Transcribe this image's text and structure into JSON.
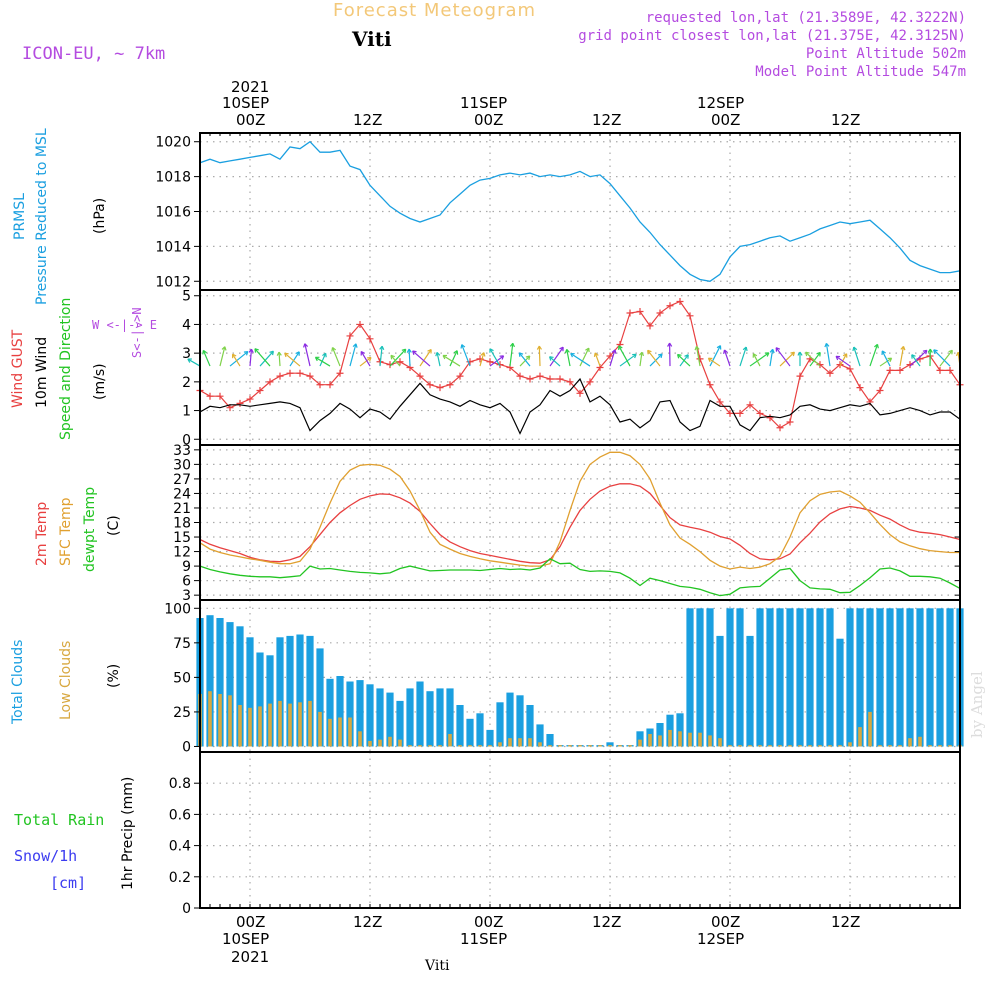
{
  "header": {
    "title": "Forecast Meteogram",
    "station": "Viti",
    "model": "ICON-EU, ~ 7km",
    "requested": "requested lon,lat (21.3589E, 42.3222N)",
    "gridpoint": "grid point closest lon,lat (21.375E, 42.3125N)",
    "point_altitude": "Point Altitude 502m",
    "model_altitude": "Model Point Altitude 547m"
  },
  "time_axis": {
    "year": "2021",
    "labels": [
      {
        "date": "10SEP",
        "hour": "00Z",
        "t": 0
      },
      {
        "date": "",
        "hour": "12Z",
        "t": 12
      },
      {
        "date": "11SEP",
        "hour": "00Z",
        "t": 24
      },
      {
        "date": "",
        "hour": "12Z",
        "t": 36
      },
      {
        "date": "12SEP",
        "hour": "00Z",
        "t": 48
      },
      {
        "date": "",
        "hour": "12Z",
        "t": 60
      }
    ],
    "range_hours": [
      -5,
      71
    ]
  },
  "footer": {
    "station": "Viti",
    "watermark": "by Angel"
  },
  "panel_labels": {
    "pressure": [
      "PRMSL",
      "Pressure Reduced to MSL",
      "(hPa)"
    ],
    "wind": [
      "Wind GUST",
      "10m Wind",
      "Speed and Direction",
      "(m/s)"
    ],
    "wind_compass": [
      "W <-|-> E",
      "S<-|->N"
    ],
    "temp": [
      "2m Temp",
      "SFC Temp",
      "dewpt Temp",
      "(C)"
    ],
    "clouds": [
      "Total Clouds",
      "Low Clouds",
      "(%)"
    ],
    "precip": [
      "1hr Precip (mm)",
      "Total  Rain",
      "Snow/1h",
      "[cm]"
    ]
  },
  "colors": {
    "pressure": "#1a9fe0",
    "gust": "#e84040",
    "wind": "#000000",
    "temp2m": "#e84040",
    "sfc": "#e0a030",
    "dewpt": "#22c422",
    "total_clouds": "#1a9fe0",
    "low_clouds": "#d8a840",
    "purple": "#b44be0",
    "rain": "#22c422",
    "snow": "#3b3bf0"
  },
  "chart_data": [
    {
      "type": "line",
      "title": "PRMSL Pressure Reduced to MSL",
      "ylabel": "(hPa)",
      "ylim": [
        1011.5,
        1020.5
      ],
      "yticks": [
        1012,
        1014,
        1016,
        1018,
        1020
      ],
      "x": [
        -5,
        -4,
        -3,
        -2,
        -1,
        0,
        1,
        2,
        3,
        4,
        5,
        6,
        7,
        8,
        9,
        10,
        11,
        12,
        13,
        14,
        15,
        16,
        17,
        18,
        19,
        20,
        21,
        22,
        23,
        24,
        25,
        26,
        27,
        28,
        29,
        30,
        31,
        32,
        33,
        34,
        35,
        36,
        37,
        38,
        39,
        40,
        41,
        42,
        43,
        44,
        45,
        46,
        47,
        48,
        49,
        50,
        51,
        52,
        53,
        54,
        55,
        56,
        57,
        58,
        59,
        60,
        61,
        62,
        63,
        64,
        65,
        66,
        67,
        68,
        69,
        70,
        71
      ],
      "y": [
        1018.8,
        1019.0,
        1018.8,
        1018.9,
        1019.0,
        1019.1,
        1019.2,
        1019.3,
        1019.0,
        1019.7,
        1019.6,
        1020.0,
        1019.4,
        1019.4,
        1019.5,
        1018.6,
        1018.4,
        1017.5,
        1016.9,
        1016.3,
        1015.9,
        1015.6,
        1015.4,
        1015.6,
        1015.8,
        1016.5,
        1017.0,
        1017.5,
        1017.8,
        1017.9,
        1018.1,
        1018.2,
        1018.1,
        1018.2,
        1018.0,
        1018.1,
        1018.0,
        1018.1,
        1018.3,
        1018.0,
        1018.1,
        1017.6,
        1016.9,
        1016.2,
        1015.4,
        1014.8,
        1014.1,
        1013.5,
        1012.9,
        1012.4,
        1012.1,
        1012.0,
        1012.4,
        1013.4,
        1014.0,
        1014.1,
        1014.3,
        1014.5,
        1014.6,
        1014.3,
        1014.5,
        1014.7,
        1015.0,
        1015.2,
        1015.4,
        1015.3,
        1015.4,
        1015.5,
        1015.0,
        1014.5,
        1013.9,
        1013.2,
        1012.9,
        1012.7,
        1012.5,
        1012.5,
        1012.6
      ]
    },
    {
      "type": "line",
      "title": "Wind GUST / 10m Wind Speed and Direction",
      "ylabel": "(m/s)",
      "ylim": [
        -0.2,
        5.2
      ],
      "yticks": [
        0,
        1,
        2,
        3,
        4,
        5
      ],
      "x": [
        -5,
        -4,
        -3,
        -2,
        -1,
        0,
        1,
        2,
        3,
        4,
        5,
        6,
        7,
        8,
        9,
        10,
        11,
        12,
        13,
        14,
        15,
        16,
        17,
        18,
        19,
        20,
        21,
        22,
        23,
        24,
        25,
        26,
        27,
        28,
        29,
        30,
        31,
        32,
        33,
        34,
        35,
        36,
        37,
        38,
        39,
        40,
        41,
        42,
        43,
        44,
        45,
        46,
        47,
        48,
        49,
        50,
        51,
        52,
        53,
        54,
        55,
        56,
        57,
        58,
        59,
        60,
        61,
        62,
        63,
        64,
        65,
        66,
        67,
        68,
        69,
        70,
        71
      ],
      "series": [
        {
          "name": "Wind GUST",
          "values": [
            1.7,
            1.5,
            1.5,
            1.1,
            1.25,
            1.4,
            1.7,
            2.0,
            2.2,
            2.3,
            2.3,
            2.2,
            1.9,
            1.9,
            2.3,
            3.6,
            4.0,
            3.5,
            2.7,
            2.6,
            2.7,
            2.5,
            2.2,
            1.9,
            1.8,
            1.9,
            2.2,
            2.7,
            2.8,
            2.7,
            2.6,
            2.5,
            2.2,
            2.1,
            2.2,
            2.1,
            2.1,
            2.0,
            1.6,
            2.0,
            2.5,
            2.9,
            3.3,
            4.4,
            4.45,
            3.95,
            4.4,
            4.65,
            4.8,
            4.3,
            2.8,
            1.9,
            1.3,
            0.9,
            0.9,
            1.2,
            0.9,
            0.75,
            0.4,
            0.6,
            2.2,
            2.8,
            2.6,
            2.3,
            2.6,
            2.45,
            1.8,
            1.3,
            1.7,
            2.4,
            2.4,
            2.6,
            2.8,
            2.9,
            2.4,
            2.4,
            1.9
          ]
        },
        {
          "name": "10m Wind",
          "values": [
            0.95,
            1.15,
            1.1,
            1.2,
            1.2,
            1.15,
            1.2,
            1.25,
            1.3,
            1.25,
            1.1,
            0.3,
            0.65,
            0.9,
            1.25,
            1.05,
            0.75,
            1.05,
            0.95,
            0.7,
            1.15,
            1.55,
            1.95,
            1.55,
            1.4,
            1.3,
            1.15,
            1.35,
            1.2,
            1.1,
            1.25,
            0.95,
            0.2,
            0.95,
            1.2,
            1.7,
            1.5,
            1.7,
            2.1,
            1.3,
            1.5,
            1.2,
            0.6,
            0.7,
            0.4,
            0.65,
            1.3,
            1.35,
            0.6,
            0.3,
            0.45,
            1.35,
            1.15,
            1.15,
            0.5,
            0.3,
            0.75,
            0.8,
            0.75,
            0.85,
            1.15,
            1.2,
            1.05,
            1.0,
            1.1,
            1.2,
            1.15,
            1.25,
            0.85,
            0.9,
            1.0,
            1.1,
            1.0,
            0.85,
            0.95,
            0.95,
            0.7
          ]
        }
      ]
    },
    {
      "type": "line",
      "title": "2m Temp / SFC Temp / dewpt Temp",
      "ylabel": "(C)",
      "ylim": [
        2,
        34
      ],
      "yticks": [
        3,
        6,
        9,
        12,
        15,
        18,
        21,
        24,
        27,
        30,
        33
      ],
      "x": [
        -5,
        -4,
        -3,
        -2,
        -1,
        0,
        1,
        2,
        3,
        4,
        5,
        6,
        7,
        8,
        9,
        10,
        11,
        12,
        13,
        14,
        15,
        16,
        17,
        18,
        19,
        20,
        21,
        22,
        23,
        24,
        25,
        26,
        27,
        28,
        29,
        30,
        31,
        32,
        33,
        34,
        35,
        36,
        37,
        38,
        39,
        40,
        41,
        42,
        43,
        44,
        45,
        46,
        47,
        48,
        49,
        50,
        51,
        52,
        53,
        54,
        55,
        56,
        57,
        58,
        59,
        60,
        61,
        62,
        63,
        64,
        65,
        66,
        67,
        68,
        69,
        70,
        71
      ],
      "series": [
        {
          "name": "2m Temp",
          "values": [
            14.5,
            13.5,
            12.8,
            12.2,
            11.6,
            10.8,
            10.3,
            10.0,
            9.9,
            10.3,
            11.0,
            13.0,
            15.5,
            18.0,
            20.0,
            21.5,
            22.8,
            23.5,
            23.9,
            23.8,
            23.1,
            22.0,
            20.3,
            17.8,
            15.5,
            14.0,
            13.0,
            12.2,
            11.6,
            11.2,
            10.8,
            10.4,
            10.0,
            9.7,
            9.6,
            10.3,
            13.0,
            17.0,
            20.5,
            22.8,
            24.5,
            25.5,
            26.0,
            26.0,
            25.5,
            24.0,
            21.5,
            19.0,
            17.5,
            17.0,
            16.6,
            16.0,
            15.1,
            14.6,
            13.3,
            11.6,
            10.5,
            10.3,
            10.5,
            11.5,
            13.8,
            15.8,
            18.1,
            19.8,
            20.8,
            21.3,
            21.0,
            20.5,
            19.5,
            18.7,
            17.5,
            16.5,
            16.0,
            15.8,
            15.5,
            15.0,
            14.5
          ]
        },
        {
          "name": "SFC Temp",
          "values": [
            13.8,
            12.5,
            11.8,
            11.3,
            10.9,
            10.5,
            10.2,
            9.8,
            9.5,
            9.5,
            10.0,
            12.5,
            17.0,
            22.0,
            26.5,
            28.8,
            29.8,
            30.0,
            29.8,
            29.0,
            27.5,
            24.5,
            20.5,
            16.0,
            13.5,
            12.5,
            11.6,
            11.0,
            10.5,
            10.1,
            9.8,
            9.5,
            9.2,
            9.0,
            9.0,
            9.5,
            14.0,
            20.5,
            26.5,
            30.0,
            31.5,
            32.5,
            32.5,
            31.8,
            30.0,
            27.0,
            22.0,
            17.5,
            14.8,
            13.5,
            12.0,
            10.2,
            9.0,
            8.4,
            8.8,
            8.5,
            8.8,
            9.5,
            11.0,
            15.0,
            20.0,
            22.5,
            23.8,
            24.3,
            24.5,
            23.5,
            22.2,
            20.0,
            17.6,
            15.5,
            14.0,
            13.2,
            12.6,
            12.2,
            12.0,
            11.8,
            11.8
          ]
        },
        {
          "name": "dewpt Temp",
          "values": [
            9.0,
            8.3,
            7.8,
            7.4,
            7.1,
            6.9,
            6.8,
            6.8,
            6.6,
            6.8,
            7.0,
            9.0,
            8.4,
            8.5,
            8.2,
            7.9,
            7.7,
            7.6,
            7.4,
            7.6,
            8.5,
            9.0,
            8.5,
            8.0,
            8.1,
            8.2,
            8.2,
            8.2,
            8.1,
            8.3,
            8.5,
            8.3,
            8.4,
            8.2,
            8.6,
            10.5,
            9.5,
            9.6,
            8.3,
            7.9,
            8.0,
            7.9,
            7.6,
            6.5,
            5.0,
            6.5,
            6.0,
            5.4,
            4.8,
            4.6,
            4.2,
            3.5,
            2.9,
            3.2,
            4.5,
            4.7,
            4.8,
            6.5,
            8.2,
            8.5,
            6.0,
            4.5,
            4.3,
            4.2,
            3.5,
            3.6,
            5.0,
            6.6,
            8.4,
            8.6,
            8.0,
            6.9,
            6.9,
            6.8,
            6.5,
            5.5,
            4.4
          ]
        }
      ]
    },
    {
      "type": "bar",
      "title": "Total Clouds / Low Clouds",
      "ylabel": "(%)",
      "ylim": [
        -4,
        106
      ],
      "yticks": [
        0,
        25,
        50,
        75,
        100
      ],
      "x": [
        -5,
        -4,
        -3,
        -2,
        -1,
        0,
        1,
        2,
        3,
        4,
        5,
        6,
        7,
        8,
        9,
        10,
        11,
        12,
        13,
        14,
        15,
        16,
        17,
        18,
        19,
        20,
        21,
        22,
        23,
        24,
        25,
        26,
        27,
        28,
        29,
        30,
        31,
        32,
        33,
        34,
        35,
        36,
        37,
        38,
        39,
        40,
        41,
        42,
        43,
        44,
        45,
        46,
        47,
        48,
        49,
        50,
        51,
        52,
        53,
        54,
        55,
        56,
        57,
        58,
        59,
        60,
        61,
        62,
        63,
        64,
        65,
        66,
        67,
        68,
        69,
        70,
        71
      ],
      "series": [
        {
          "name": "Total Clouds",
          "values": [
            93,
            95,
            93,
            90,
            87,
            79,
            68,
            66,
            79,
            80,
            81,
            80,
            71,
            49,
            51,
            47,
            48,
            45,
            42,
            39,
            33,
            42,
            47,
            40,
            42,
            42,
            30,
            20,
            24,
            12,
            32,
            39,
            37,
            30,
            16,
            9,
            1,
            1,
            1,
            1,
            1,
            3,
            1,
            1,
            11,
            13,
            17,
            23,
            24,
            100,
            100,
            100,
            80,
            100,
            100,
            80,
            100,
            100,
            100,
            100,
            100,
            100,
            100,
            100,
            78,
            100,
            100,
            100,
            100,
            100,
            100,
            100,
            100,
            100,
            100,
            100,
            100
          ]
        },
        {
          "name": "Low Clouds",
          "values": [
            38,
            40,
            38,
            37,
            30,
            28,
            29,
            31,
            33,
            31,
            32,
            33,
            25,
            20,
            21,
            21,
            11,
            4,
            5,
            7,
            5,
            1,
            1,
            1,
            1,
            9,
            1,
            1,
            1,
            1,
            3,
            6,
            6,
            6,
            3,
            1,
            1,
            1,
            1,
            1,
            1,
            1,
            1,
            1,
            5,
            9,
            8,
            12,
            11,
            10,
            10,
            8,
            6,
            1,
            1,
            1,
            1,
            1,
            1,
            1,
            1,
            1,
            1,
            1,
            1,
            3,
            14,
            25,
            1,
            1,
            1,
            6,
            7,
            1,
            1,
            1,
            1
          ]
        }
      ]
    },
    {
      "type": "bar",
      "title": "1hr Precip (mm)",
      "ylabel": "1hr Precip (mm)",
      "ylim": [
        0,
        1.0
      ],
      "yticks": [
        0,
        0.2,
        0.4,
        0.6,
        0.8
      ],
      "series": [
        {
          "name": "Total Rain",
          "values": []
        },
        {
          "name": "Snow/1h",
          "values": []
        }
      ]
    }
  ]
}
